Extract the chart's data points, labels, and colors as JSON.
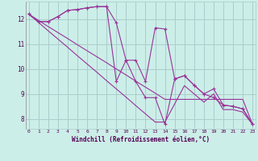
{
  "background_color": "#cceee8",
  "grid_color": "#aacccc",
  "line_color": "#993399",
  "x_label": "Windchill (Refroidissement éolien,°C)",
  "x_ticks": [
    0,
    1,
    2,
    3,
    4,
    5,
    6,
    7,
    8,
    9,
    10,
    11,
    12,
    13,
    14,
    15,
    16,
    17,
    18,
    19,
    20,
    21,
    22,
    23
  ],
  "y_ticks": [
    8,
    9,
    10,
    11,
    12
  ],
  "ylim": [
    7.6,
    12.7
  ],
  "xlim": [
    -0.3,
    23.3
  ],
  "line1_x": [
    0,
    1,
    2,
    3,
    4,
    5,
    6,
    7,
    8,
    9,
    10,
    11,
    12,
    13,
    14,
    15,
    16,
    17,
    18,
    19,
    20,
    21,
    22,
    23
  ],
  "line1_y": [
    12.2,
    11.95,
    11.7,
    11.46,
    11.22,
    10.97,
    10.73,
    10.49,
    10.25,
    10.0,
    9.76,
    9.51,
    9.27,
    9.03,
    8.78,
    8.78,
    8.78,
    8.78,
    8.78,
    8.78,
    8.78,
    8.78,
    8.78,
    7.78
  ],
  "line2_x": [
    0,
    1,
    2,
    3,
    4,
    5,
    6,
    7,
    8,
    9,
    10,
    11,
    12,
    13,
    14,
    15,
    16,
    17,
    18,
    19,
    20,
    21,
    22,
    23
  ],
  "line2_y": [
    12.2,
    11.87,
    11.53,
    11.2,
    10.87,
    10.53,
    10.2,
    9.87,
    9.53,
    9.2,
    8.87,
    8.53,
    8.2,
    7.87,
    7.87,
    8.6,
    9.33,
    9.0,
    8.67,
    9.0,
    8.37,
    8.37,
    8.27,
    7.78
  ],
  "line3_x": [
    0,
    1,
    2,
    3,
    4,
    5,
    6,
    7,
    8,
    9,
    10,
    11,
    12,
    13,
    14,
    15,
    16,
    17,
    18,
    19,
    20,
    21,
    22,
    23
  ],
  "line3_y": [
    12.2,
    11.9,
    11.9,
    12.1,
    12.35,
    12.38,
    12.45,
    12.5,
    12.5,
    11.85,
    10.35,
    10.35,
    9.5,
    11.65,
    11.6,
    9.6,
    9.73,
    9.35,
    9.0,
    8.85,
    8.55,
    8.5,
    8.4,
    7.78
  ],
  "line4_x": [
    0,
    1,
    2,
    3,
    4,
    5,
    6,
    7,
    8,
    9,
    10,
    11,
    12,
    13,
    14,
    15,
    16,
    17,
    18,
    19,
    20,
    21,
    22,
    23
  ],
  "line4_y": [
    12.2,
    11.9,
    11.9,
    12.1,
    12.35,
    12.38,
    12.45,
    12.5,
    12.5,
    9.5,
    10.35,
    9.5,
    8.85,
    8.85,
    7.78,
    9.6,
    9.73,
    9.35,
    9.0,
    9.2,
    8.55,
    8.5,
    8.4,
    7.78
  ]
}
